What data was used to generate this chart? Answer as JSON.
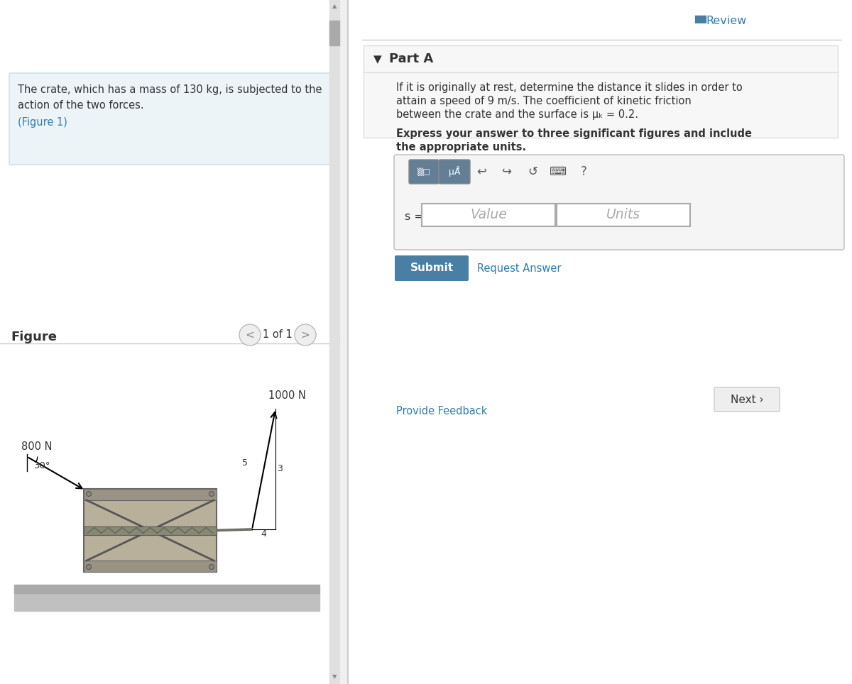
{
  "bg_color": "#f0f0f0",
  "left_panel_bg": "#ffffff",
  "right_panel_bg": "#ffffff",
  "left_box_bg": "#edf4f8",
  "left_box_border": "#c8dce8",
  "problem_text_line1": "The crate, which has a mass of 130 kg, is subjected to the",
  "problem_text_line2": "action of the two forces.",
  "figure_link": "(Figure 1)",
  "figure_label": "Figure",
  "figure_nav": "1 of 1",
  "part_label": "Part A",
  "body_text_line1": "If it is originally at rest, determine the distance it slides in order to",
  "body_text_line2": "attain a speed of 9 m/s. The coefficient of kinetic friction",
  "body_text_line3": "between the crate and the surface is μₖ = 0.2.",
  "bold_text_line1": "Express your answer to three significant figures and include",
  "bold_text_line2": "the appropriate units.",
  "s_label": "s =",
  "value_placeholder": "Value",
  "units_placeholder": "Units",
  "submit_text": "Submit",
  "request_answer_text": "Request Answer",
  "provide_feedback_text": "Provide Feedback",
  "next_text": "Next ›",
  "review_text": "Review",
  "force1_label": "800 N",
  "force1_angle": "30°",
  "force2_label": "1000 N",
  "link_color": "#2e7dad",
  "submit_color": "#4a7fa5",
  "submit_text_color": "#ffffff",
  "text_color": "#333333",
  "crate_color": "#b8b09a",
  "scrollbar_color": "#aaaaaa"
}
